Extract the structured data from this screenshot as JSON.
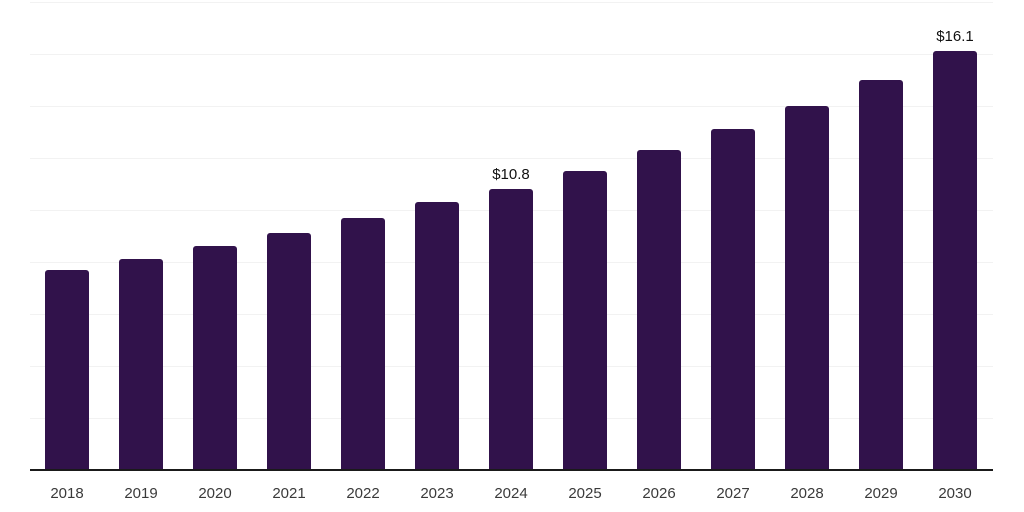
{
  "chart_data": {
    "type": "bar",
    "title": "",
    "subtitle": "",
    "xlabel": "",
    "ylabel": "",
    "categories": [
      "2018",
      "2019",
      "2020",
      "2021",
      "2022",
      "2023",
      "2024",
      "2025",
      "2026",
      "2027",
      "2028",
      "2029",
      "2030"
    ],
    "values": [
      7.7,
      8.1,
      8.6,
      9.1,
      9.7,
      10.3,
      10.8,
      11.5,
      12.3,
      13.1,
      14.0,
      15.0,
      16.1
    ],
    "bar_labels": [
      "",
      "",
      "",
      "",
      "",
      "",
      "$10.8",
      "",
      "",
      "",
      "",
      "",
      "$16.1"
    ],
    "ylim": [
      0,
      18
    ],
    "grid_step": 2,
    "grid": "horizontal",
    "y_tick_labels_visible": false,
    "legend_position": "none",
    "colors": {
      "bar": "#31124b",
      "gridline": "#f2f2f2",
      "axis_line": "#1a1a1a",
      "tick_label": "#3a3a3a",
      "value_label": "#111111",
      "background": "#ffffff"
    }
  }
}
